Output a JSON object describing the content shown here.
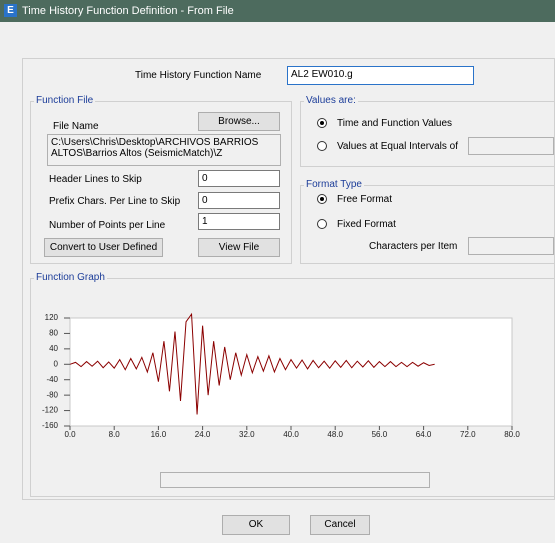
{
  "window": {
    "title": "Time History Function Definition  - From File"
  },
  "function_name": {
    "label": "Time History Function Name",
    "value": "AL2 EW010.g"
  },
  "function_file": {
    "title": "Function File",
    "file_name_label": "File Name",
    "browse": "Browse...",
    "path": "C:\\Users\\Chris\\Desktop\\ARCHIVOS BARRIOS ALTOS\\Barrios Altos (SeismicMatch)\\Z",
    "header_lines_label": "Header Lines to Skip",
    "header_lines": "0",
    "prefix_label": "Prefix Chars. Per Line to Skip",
    "prefix": "0",
    "points_label": "Number of Points per Line",
    "points": "1",
    "convert": "Convert to User Defined",
    "view": "View File"
  },
  "values_are": {
    "title": "Values are:",
    "option1": "Time and Function Values",
    "option2": "Values at Equal Intervals of"
  },
  "format_type": {
    "title": "Format Type",
    "option1": "Free Format",
    "option2": "Fixed Format",
    "chars_label": "Characters per Item"
  },
  "buttons": {
    "ok": "OK",
    "cancel": "Cancel"
  },
  "chart_data": {
    "type": "line",
    "title": "Function Graph",
    "color": "#8b0000",
    "xlim": [
      0,
      80
    ],
    "ylim": [
      -160,
      120
    ],
    "xticks": [
      {
        "value": 0,
        "label": "0.0"
      },
      {
        "value": 8,
        "label": "8.0"
      },
      {
        "value": 16,
        "label": "16.0"
      },
      {
        "value": 24,
        "label": "24.0"
      },
      {
        "value": 32,
        "label": "32.0"
      },
      {
        "value": 40,
        "label": "40.0"
      },
      {
        "value": 48,
        "label": "48.0"
      },
      {
        "value": 56,
        "label": "56.0"
      },
      {
        "value": 64,
        "label": "64.0"
      },
      {
        "value": 72,
        "label": "72.0"
      },
      {
        "value": 80,
        "label": "80.0"
      }
    ],
    "yticks": [
      120,
      80,
      40,
      0,
      -40,
      -80,
      -120,
      -160
    ],
    "x": [
      0,
      1,
      2,
      3,
      4,
      5,
      6,
      7,
      8,
      9,
      10,
      11,
      12,
      13,
      14,
      15,
      16,
      17,
      18,
      19,
      20,
      21,
      22,
      23,
      24,
      25,
      26,
      27,
      28,
      29,
      30,
      31,
      32,
      33,
      34,
      35,
      36,
      37,
      38,
      39,
      40,
      41,
      42,
      43,
      44,
      45,
      46,
      47,
      48,
      49,
      50,
      51,
      52,
      53,
      54,
      55,
      56,
      57,
      58,
      59,
      60,
      61,
      62,
      63,
      64,
      65,
      66
    ],
    "values": [
      0,
      5,
      -6,
      7,
      -5,
      8,
      -9,
      6,
      -10,
      12,
      -14,
      15,
      -12,
      18,
      -20,
      30,
      -45,
      60,
      -70,
      85,
      -95,
      110,
      130,
      -130,
      100,
      -80,
      60,
      -55,
      45,
      -40,
      30,
      -28,
      25,
      -22,
      20,
      -18,
      22,
      -20,
      15,
      -14,
      12,
      -10,
      11,
      -12,
      10,
      -9,
      8,
      -10,
      9,
      -8,
      10,
      -9,
      8,
      -7,
      9,
      -8,
      7,
      -6,
      7,
      -6,
      5,
      -6,
      5,
      -5,
      4,
      -3,
      0
    ]
  }
}
